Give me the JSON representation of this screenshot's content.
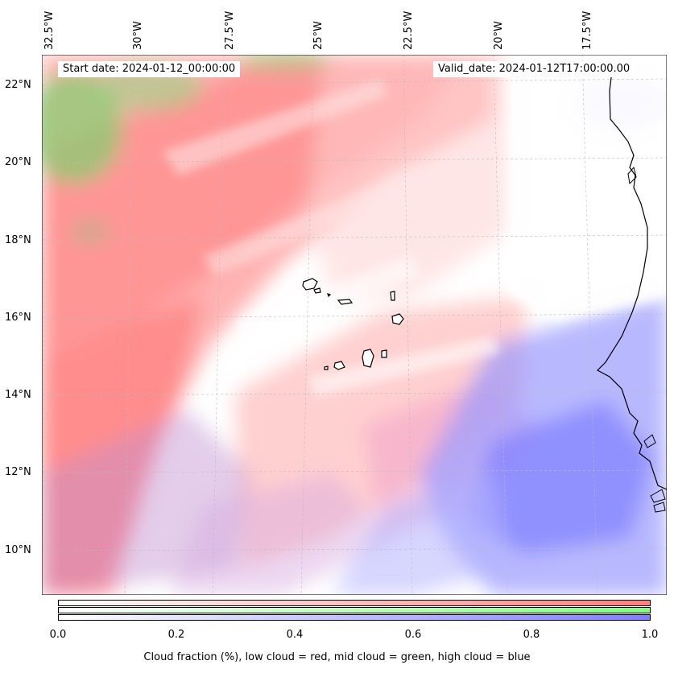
{
  "lon_labels": [
    "32.5°W",
    "30°W",
    "27.5°W",
    "25°W",
    "22.5°W",
    "20°W",
    "17.5°W"
  ],
  "lat_labels": [
    "22°N",
    "20°N",
    "18°N",
    "16°N",
    "14°N",
    "12°N",
    "10°N"
  ],
  "start_date": "Start date: 2024-01-12_00:00:00",
  "valid_date": "Valid_date: 2024-01-12T17:00:00.00",
  "colorbar": {
    "ticks": [
      "0.0",
      "0.2",
      "0.4",
      "0.6",
      "0.8",
      "1.0"
    ],
    "title": "Cloud fraction (%), low cloud = red, mid cloud = green, high cloud = blue",
    "low_color": "#ff7f7f",
    "mid_color": "#7fff7f",
    "high_color": "#7f7fff"
  }
}
